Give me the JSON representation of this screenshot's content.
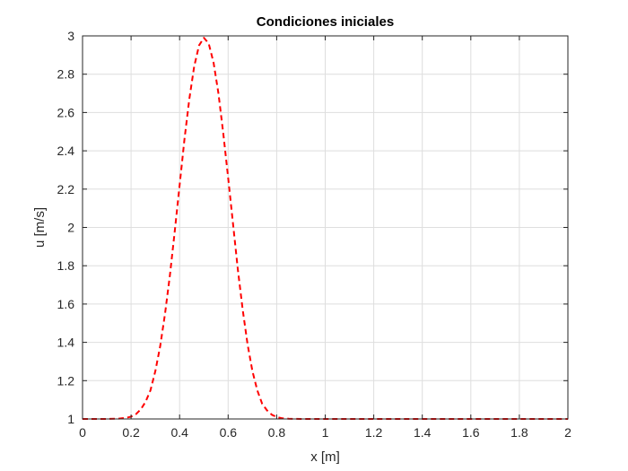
{
  "chart_data": {
    "type": "line",
    "title": "Condiciones iniciales",
    "xlabel": "x [m]",
    "ylabel": "u [m/s]",
    "xlim": [
      0,
      2
    ],
    "ylim": [
      1,
      3
    ],
    "grid": true,
    "x_ticks": [
      0,
      0.2,
      0.4,
      0.6,
      0.8,
      1,
      1.2,
      1.4,
      1.6,
      1.8,
      2
    ],
    "x_tick_labels": [
      "0",
      "0.2",
      "0.4",
      "0.6",
      "0.8",
      "1",
      "1.2",
      "1.4",
      "1.6",
      "1.8",
      "2"
    ],
    "y_ticks": [
      1,
      1.2,
      1.4,
      1.6,
      1.8,
      2,
      2.2,
      2.4,
      2.6,
      2.8,
      3
    ],
    "y_tick_labels": [
      "1",
      "1.2",
      "1.4",
      "1.6",
      "1.8",
      "2",
      "2.2",
      "2.4",
      "2.6",
      "2.8",
      "3"
    ],
    "series": [
      {
        "color": "#ff0000",
        "line_style": "dashed",
        "x": [
          0,
          0.1,
          0.15,
          0.18,
          0.2,
          0.22,
          0.24,
          0.26,
          0.28,
          0.3,
          0.32,
          0.34,
          0.36,
          0.38,
          0.4,
          0.42,
          0.44,
          0.46,
          0.48,
          0.5,
          0.52,
          0.54,
          0.56,
          0.58,
          0.6,
          0.62,
          0.64,
          0.66,
          0.68,
          0.7,
          0.72,
          0.74,
          0.76,
          0.78,
          0.8,
          0.82,
          0.85,
          0.9,
          1.0,
          1.2,
          1.4,
          1.6,
          1.8,
          2.0
        ],
        "y": [
          1,
          1,
          1.002,
          1.006,
          1.012,
          1.025,
          1.05,
          1.09,
          1.15,
          1.25,
          1.38,
          1.55,
          1.75,
          1.98,
          2.22,
          2.46,
          2.67,
          2.84,
          2.95,
          2.99,
          2.96,
          2.86,
          2.7,
          2.49,
          2.26,
          2.02,
          1.78,
          1.57,
          1.39,
          1.25,
          1.15,
          1.08,
          1.045,
          1.022,
          1.01,
          1.004,
          1.001,
          1,
          1,
          1,
          1,
          1,
          1,
          1
        ]
      }
    ]
  }
}
